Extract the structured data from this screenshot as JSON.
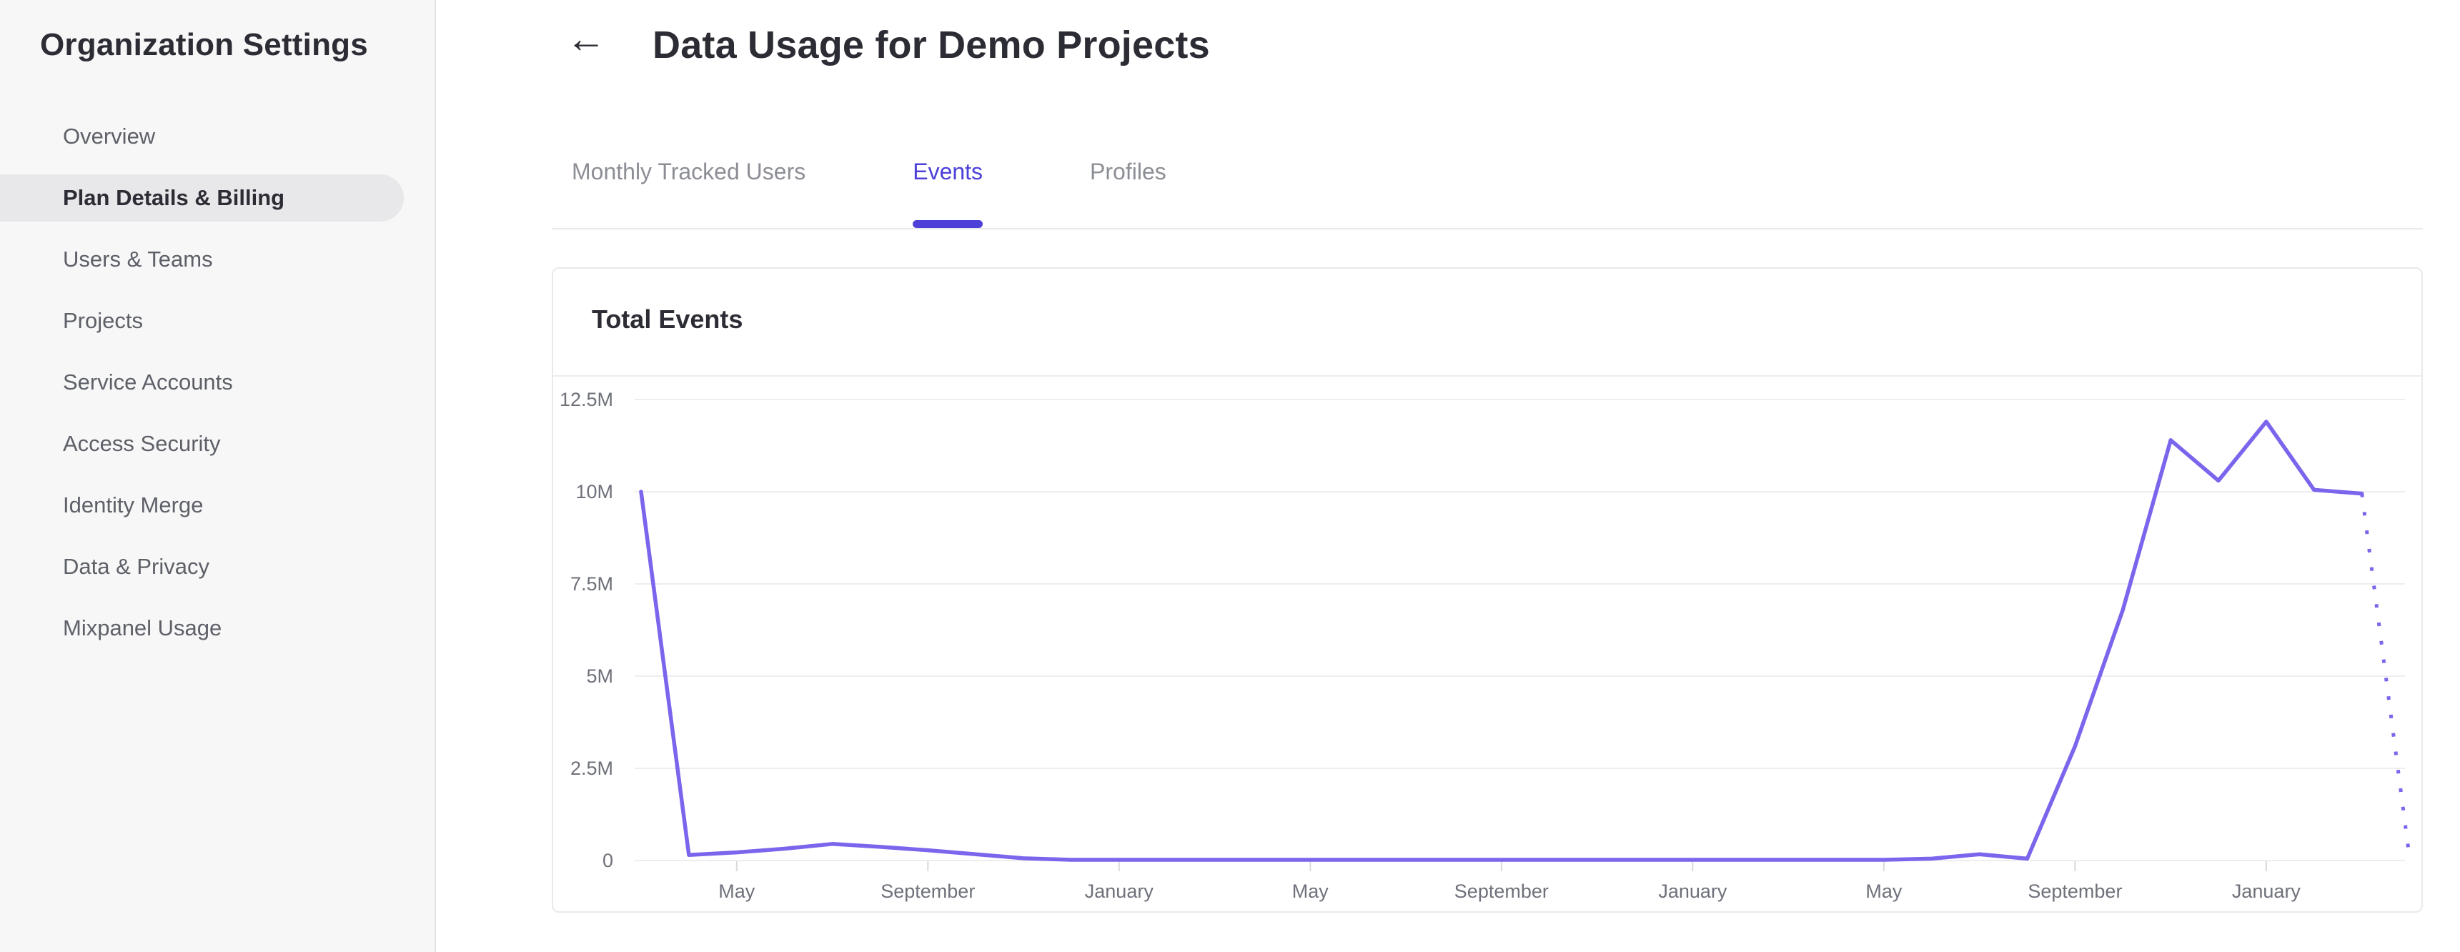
{
  "sidebar": {
    "title": "Organization Settings",
    "items": [
      {
        "label": "Overview",
        "active": false
      },
      {
        "label": "Plan Details & Billing",
        "active": true
      },
      {
        "label": "Users & Teams",
        "active": false
      },
      {
        "label": "Projects",
        "active": false
      },
      {
        "label": "Service Accounts",
        "active": false
      },
      {
        "label": "Access Security",
        "active": false
      },
      {
        "label": "Identity Merge",
        "active": false
      },
      {
        "label": "Data & Privacy",
        "active": false
      },
      {
        "label": "Mixpanel Usage",
        "active": false
      }
    ]
  },
  "header": {
    "back_icon": "←",
    "title": "Data Usage for Demo Projects"
  },
  "tabs": [
    {
      "label": "Monthly Tracked Users",
      "active": false
    },
    {
      "label": "Events",
      "active": true
    },
    {
      "label": "Profiles",
      "active": false
    }
  ],
  "card": {
    "title": "Total Events"
  },
  "colors": {
    "accent_purple": "#4c40d9",
    "chart_line": "#7a66ec",
    "gridline": "#ededf0",
    "axis_text": "#6e717a",
    "tick_mark": "#dadadd",
    "sidebar_bg": "#f7f7f8",
    "active_pill": "#e8e8ea",
    "text_dark": "#2c2c35",
    "text_gray": "#8c8e95"
  },
  "chart_data": {
    "type": "line",
    "title": "Total Events",
    "unit": "events, millions",
    "start_month": "March",
    "values_millions": [
      10,
      0.15,
      0.22,
      0.32,
      0.45,
      0.37,
      0.28,
      0.17,
      0.06,
      0.02,
      0.02,
      0.02,
      0.02,
      0.02,
      0.02,
      0.02,
      0.02,
      0.02,
      0.02,
      0.02,
      0.02,
      0.02,
      0.02,
      0.02,
      0.02,
      0.02,
      0.02,
      0.05,
      0.17,
      0.05,
      3.1,
      6.8,
      11.4,
      10.3,
      11.9,
      10.05,
      9.95,
      0.05
    ],
    "dotted_from_index": 36,
    "dotted_style": "projected last segment shown as dotted line",
    "y_ticks": [
      {
        "label": "12.5M",
        "value": 12.5
      },
      {
        "label": "10M",
        "value": 10
      },
      {
        "label": "7.5M",
        "value": 7.5
      },
      {
        "label": "5M",
        "value": 5
      },
      {
        "label": "2.5M",
        "value": 2.5
      },
      {
        "label": "0",
        "value": 0
      }
    ],
    "x_ticks": [
      {
        "index": 2,
        "label": "May"
      },
      {
        "index": 6,
        "label": "September"
      },
      {
        "index": 10,
        "label": "January"
      },
      {
        "index": 14,
        "label": "May"
      },
      {
        "index": 18,
        "label": "September"
      },
      {
        "index": 22,
        "label": "January"
      },
      {
        "index": 26,
        "label": "May"
      },
      {
        "index": 30,
        "label": "September"
      },
      {
        "index": 34,
        "label": "January"
      }
    ],
    "ylim": [
      0,
      12.5
    ],
    "grid": "horizontal only",
    "legend": "none"
  }
}
